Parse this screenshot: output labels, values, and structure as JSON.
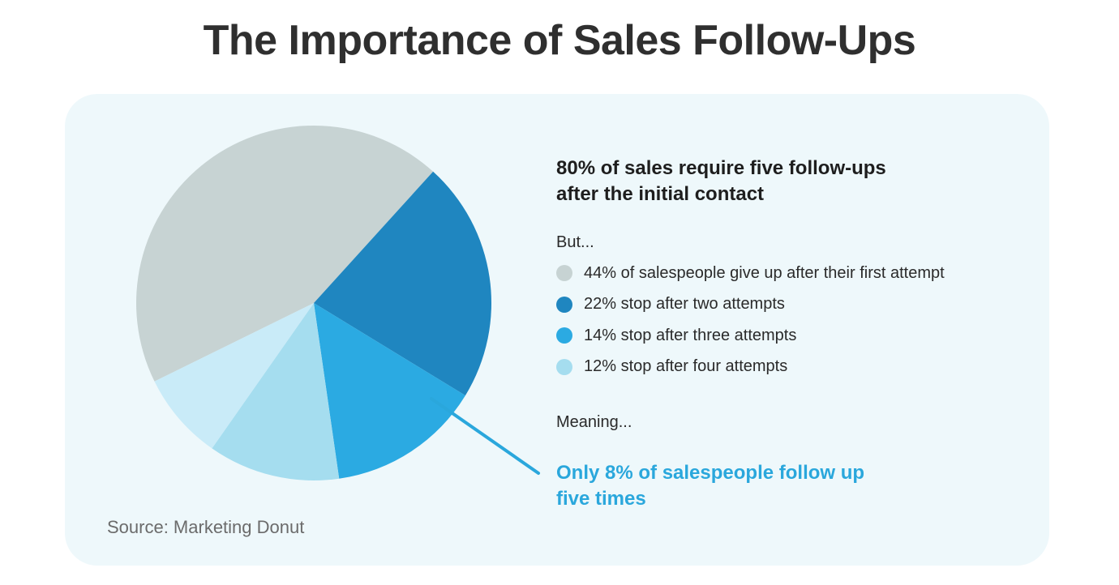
{
  "title": "The Importance of Sales Follow-Ups",
  "headline": {
    "line1": "80% of sales require five follow-ups",
    "line2": "after the initial contact"
  },
  "but_label": "But...",
  "meaning_label": "Meaning...",
  "conclusion": {
    "line1": "Only 8% of salespeople follow up",
    "line2": "five times"
  },
  "source": "Source: Marketing Donut",
  "colors": {
    "gray": "#c7d3d3",
    "dark_blue": "#1f86c0",
    "blue": "#2baae2",
    "light_blue": "#a5ddef",
    "pale_blue": "#c9ebf8",
    "accent": "#2aa7dc"
  },
  "chart_data": {
    "type": "pie",
    "slices": [
      {
        "label": "44% of salespeople give up after their first attempt",
        "value": 44,
        "color": "#c7d3d3"
      },
      {
        "label": "22% stop after two attempts",
        "value": 22,
        "color": "#1f86c0"
      },
      {
        "label": "14% stop after three attempts",
        "value": 14,
        "color": "#2baae2"
      },
      {
        "label": "12% stop after four attempts",
        "value": 12,
        "color": "#a5ddef"
      },
      {
        "label": "Only 8% of salespeople follow up five times",
        "value": 8,
        "color": "#c9ebf8"
      }
    ]
  }
}
